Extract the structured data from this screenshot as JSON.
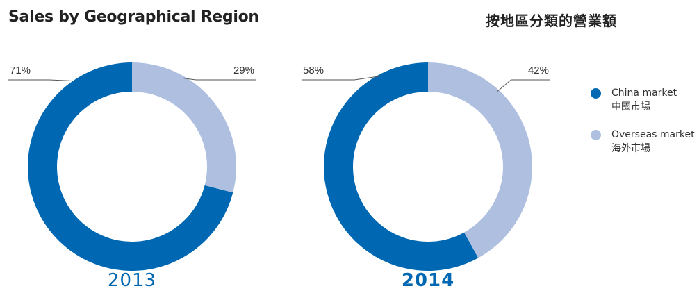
{
  "title_en": "Sales by Geographical Region",
  "title_zh": "按地區分類的營業額",
  "colors": {
    "china": "#0068b2",
    "overseas": "#aebfe0"
  },
  "legend": [
    {
      "label_en": "China market",
      "label_zh": "中國市場",
      "color": "#0068b2"
    },
    {
      "label_en": "Overseas market",
      "label_zh": "海外市場",
      "color": "#aebfe0"
    }
  ],
  "chart_data": [
    {
      "type": "pie",
      "year_label": "2013",
      "categories": [
        "China market",
        "Overseas market"
      ],
      "values": [
        71,
        29
      ],
      "labels": [
        "71%",
        "29%"
      ]
    },
    {
      "type": "pie",
      "year_label": "2014",
      "categories": [
        "China market",
        "Overseas market"
      ],
      "values": [
        58,
        42
      ],
      "labels": [
        "58%",
        "42%"
      ]
    }
  ]
}
